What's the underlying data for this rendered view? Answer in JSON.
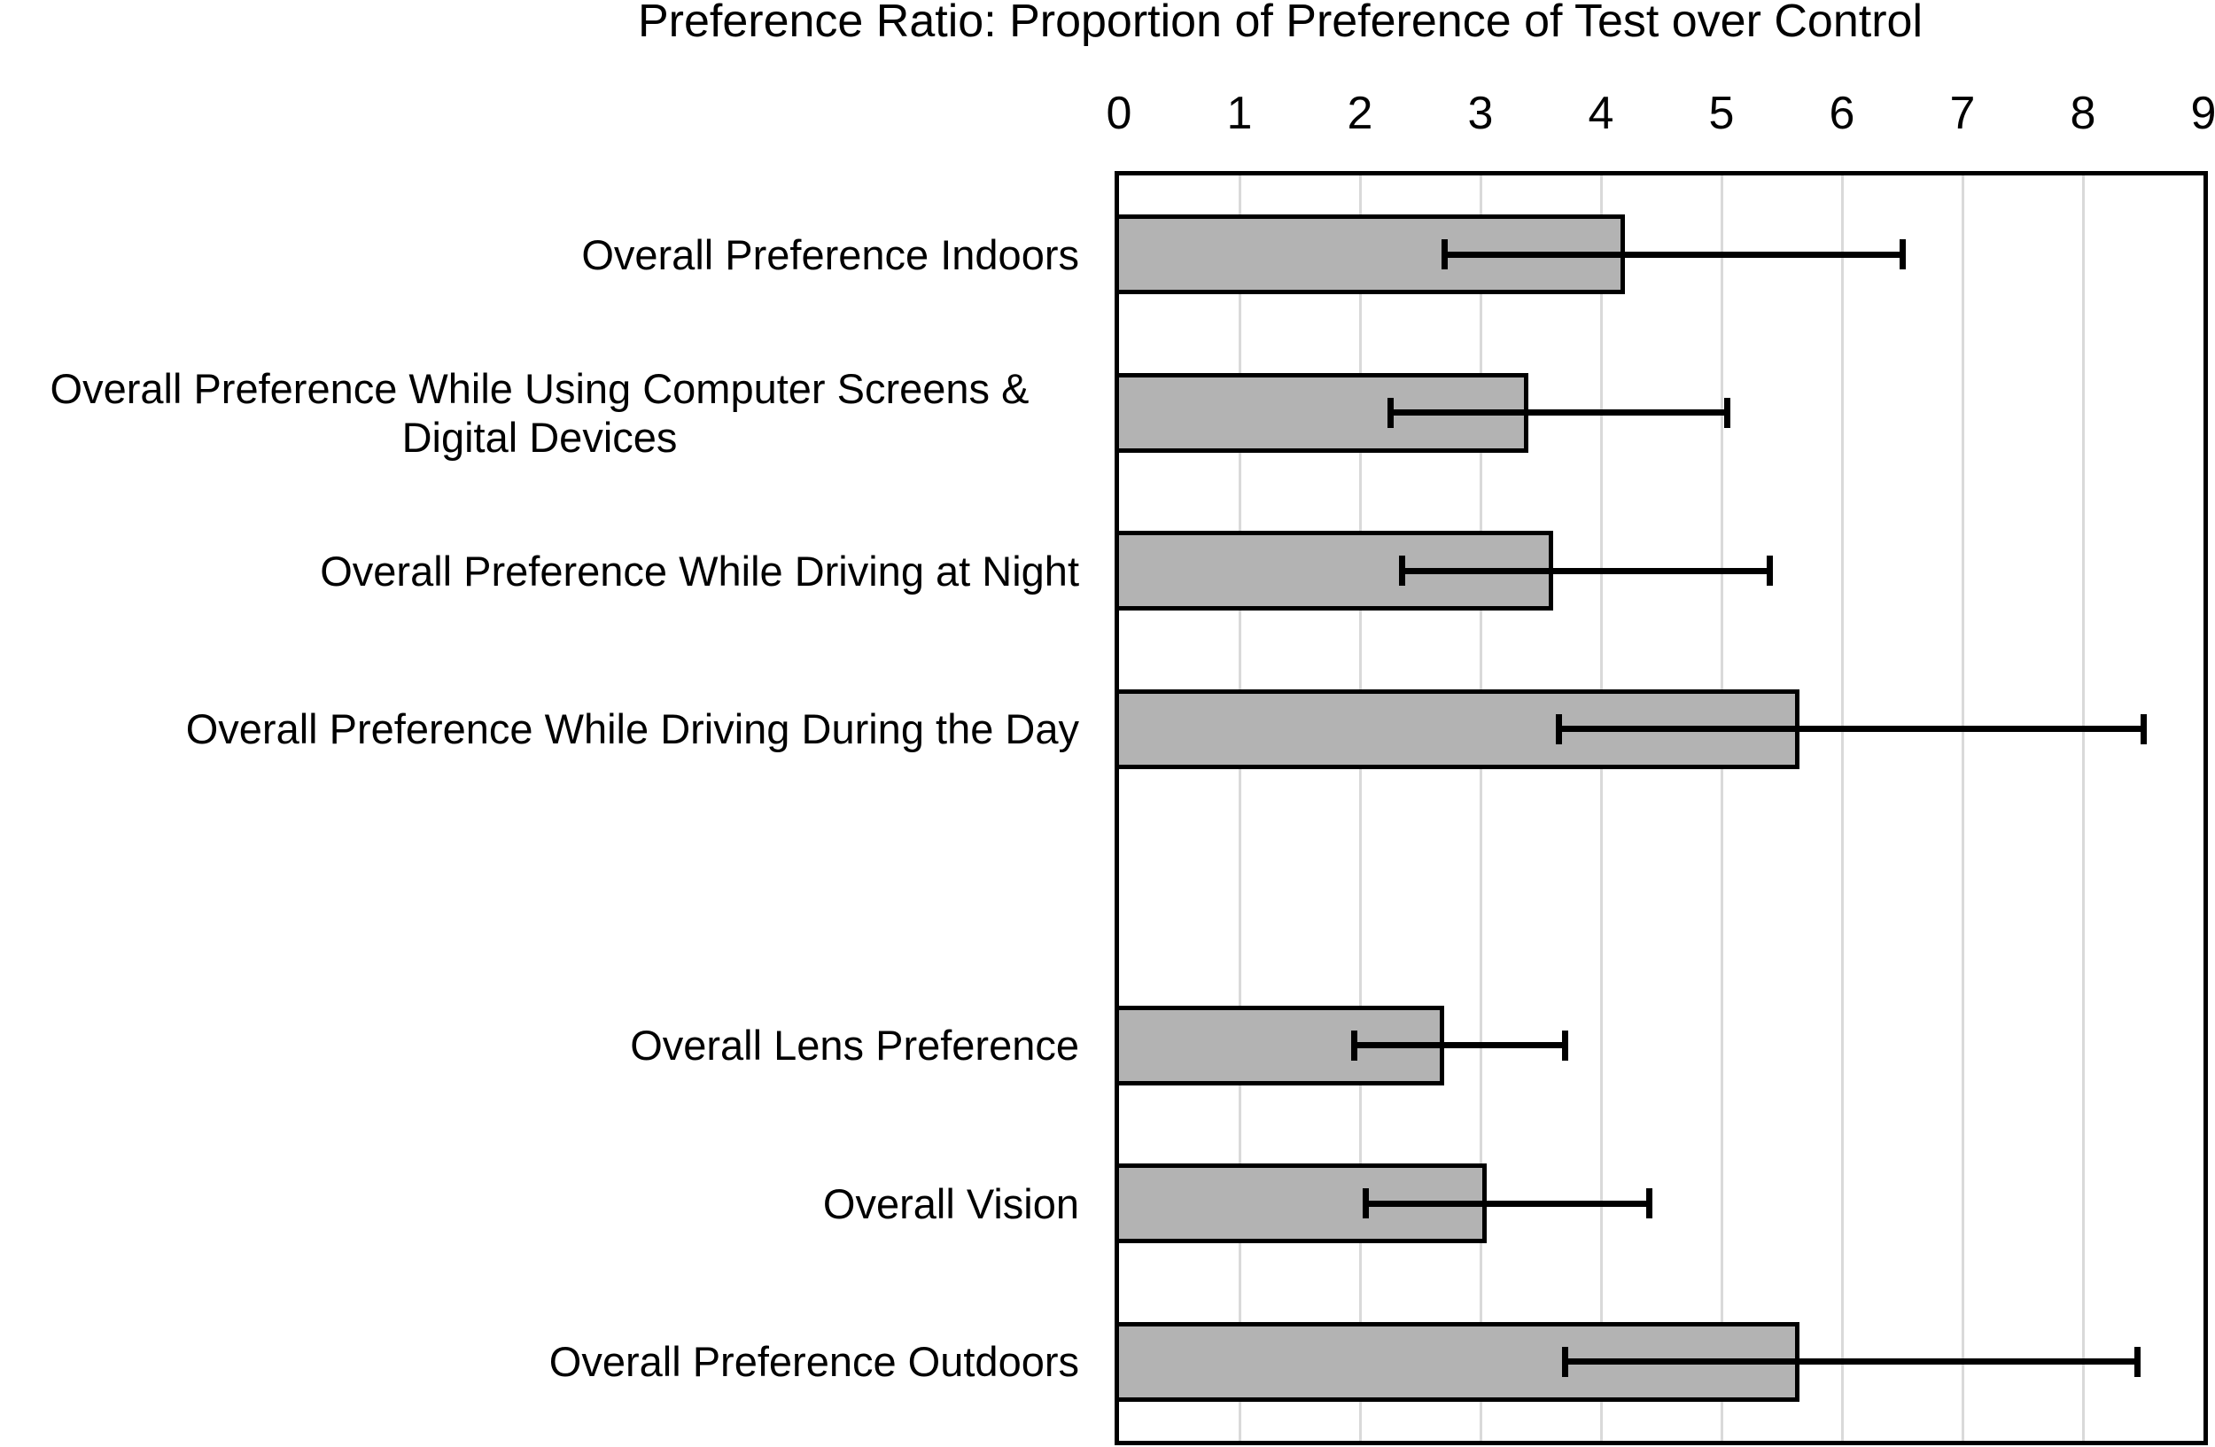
{
  "chart_data": {
    "type": "bar",
    "orientation": "horizontal",
    "title": "Preference Ratio: Proportion of Preference of Test over Control",
    "categories": [
      "Overall Preference Indoors",
      "Overall Preference While Using Computer Screens & Digital Devices",
      "Overall Preference While Driving at Night",
      "Overall Preference While Driving During the Day",
      "",
      "Overall Lens Preference",
      "Overall Vision",
      "Overall Preference Outdoors"
    ],
    "values": [
      4.2,
      3.4,
      3.6,
      5.65,
      null,
      2.7,
      3.05,
      5.65
    ],
    "error_low": [
      2.7,
      2.25,
      2.35,
      3.65,
      null,
      1.95,
      2.05,
      3.7
    ],
    "error_high": [
      6.5,
      5.05,
      5.4,
      8.5,
      null,
      3.7,
      4.4,
      8.45
    ],
    "xlabel": "",
    "ylabel": "",
    "xlim": [
      0,
      9
    ],
    "x_ticks": [
      0,
      1,
      2,
      3,
      4,
      5,
      6,
      7,
      8,
      9
    ],
    "grid": "vertical",
    "legend": "none",
    "colors": {
      "bar_fill": "#b3b3b3",
      "bar_border": "#000000",
      "error_bar": "#000000",
      "gridline": "#d9d9d9",
      "text": "#000000",
      "background": "#ffffff"
    }
  }
}
